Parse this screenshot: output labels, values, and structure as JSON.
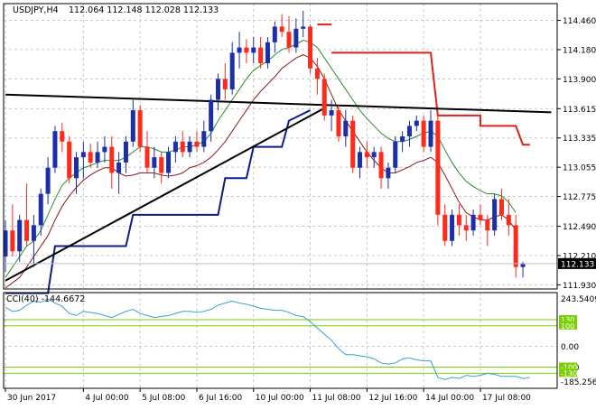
{
  "chart_data": {
    "type": "candlestick",
    "symbol_header": "USDJPY,H4",
    "ohlc_header": "112.064 112.148 112.028 112.133",
    "price_axis": {
      "range": [
        111.89,
        114.62
      ],
      "ticks": [
        "114.460",
        "114.180",
        "113.900",
        "113.615",
        "113.335",
        "113.055",
        "112.775",
        "112.490",
        "112.210",
        "111.930"
      ],
      "tick_values": [
        114.46,
        114.18,
        113.9,
        113.615,
        113.335,
        113.055,
        112.775,
        112.49,
        112.21,
        111.93
      ],
      "current_price_label": "112.133",
      "current_price": 112.133
    },
    "time_axis": {
      "bar_count": 77,
      "labels": [
        {
          "text": "30 Jun 2017",
          "bar": 0
        },
        {
          "text": "4 Jul 00:00",
          "bar": 11
        },
        {
          "text": "5 Jul 08:00",
          "bar": 19
        },
        {
          "text": "6 Jul 16:00",
          "bar": 27
        },
        {
          "text": "10 Jul 00:00",
          "bar": 35
        },
        {
          "text": "11 Jul 08:00",
          "bar": 43
        },
        {
          "text": "12 Jul 16:00",
          "bar": 51
        },
        {
          "text": "14 Jul 00:00",
          "bar": 59
        },
        {
          "text": "17 Jul 08:00",
          "bar": 67
        }
      ]
    },
    "colors": {
      "bull": "#1a2fa8",
      "bear": "#ff2a1a",
      "ma_fast": "#2e8b2e",
      "ma_slow": "#8b1a1a",
      "trend": "#000000",
      "stop_low": "#0b1e88",
      "stop_high": "#e0201a",
      "cci_line": "#3aa0c8",
      "cci_levels": "#7ad000",
      "grid": "#c8c8c8",
      "price_box": "#c0c0c0"
    },
    "candles": [
      [
        112.2,
        112.55,
        112.05,
        112.45
      ],
      [
        112.45,
        112.7,
        112.2,
        112.25
      ],
      [
        112.25,
        112.6,
        112.15,
        112.55
      ],
      [
        112.55,
        112.9,
        112.3,
        112.35
      ],
      [
        112.35,
        112.6,
        112.1,
        112.5
      ],
      [
        112.5,
        112.85,
        112.4,
        112.8
      ],
      [
        112.8,
        113.15,
        112.7,
        113.05
      ],
      [
        113.05,
        113.45,
        113.0,
        113.4
      ],
      [
        113.4,
        113.48,
        113.2,
        113.3
      ],
      [
        113.3,
        113.35,
        112.9,
        112.95
      ],
      [
        112.95,
        113.2,
        112.8,
        113.15
      ],
      [
        113.15,
        113.3,
        112.95,
        113.2
      ],
      [
        113.2,
        113.28,
        113.05,
        113.1
      ],
      [
        113.1,
        113.3,
        113.05,
        113.2
      ],
      [
        113.2,
        113.35,
        113.1,
        113.25
      ],
      [
        113.25,
        113.35,
        112.85,
        113.0
      ],
      [
        113.0,
        113.2,
        112.8,
        113.1
      ],
      [
        113.1,
        113.35,
        113.0,
        113.3
      ],
      [
        113.3,
        113.7,
        113.25,
        113.6
      ],
      [
        113.6,
        113.65,
        113.2,
        113.25
      ],
      [
        113.25,
        113.4,
        113.0,
        113.05
      ],
      [
        113.05,
        113.25,
        112.95,
        113.15
      ],
      [
        113.15,
        113.2,
        112.9,
        113.0
      ],
      [
        113.0,
        113.25,
        112.95,
        113.2
      ],
      [
        113.2,
        113.35,
        113.1,
        113.3
      ],
      [
        113.3,
        113.4,
        113.15,
        113.2
      ],
      [
        113.2,
        113.35,
        113.15,
        113.3
      ],
      [
        113.3,
        113.4,
        113.2,
        113.25
      ],
      [
        113.25,
        113.5,
        113.2,
        113.4
      ],
      [
        113.4,
        113.75,
        113.3,
        113.7
      ],
      [
        113.7,
        113.95,
        113.6,
        113.9
      ],
      [
        113.9,
        114.05,
        113.7,
        113.8
      ],
      [
        113.8,
        114.25,
        113.75,
        114.15
      ],
      [
        114.15,
        114.35,
        114.0,
        114.2
      ],
      [
        114.2,
        114.28,
        114.05,
        114.15
      ],
      [
        114.15,
        114.3,
        114.05,
        114.2
      ],
      [
        114.2,
        114.3,
        114.0,
        114.05
      ],
      [
        114.05,
        114.3,
        114.0,
        114.25
      ],
      [
        114.25,
        114.45,
        114.15,
        114.4
      ],
      [
        114.4,
        114.52,
        114.3,
        114.35
      ],
      [
        114.35,
        114.5,
        114.15,
        114.2
      ],
      [
        114.2,
        114.48,
        114.15,
        114.38
      ],
      [
        114.38,
        114.55,
        114.3,
        114.4
      ],
      [
        114.4,
        114.42,
        113.95,
        114.0
      ],
      [
        114.0,
        114.1,
        113.75,
        113.9
      ],
      [
        113.9,
        113.95,
        113.5,
        113.55
      ],
      [
        113.55,
        113.7,
        113.4,
        113.6
      ],
      [
        113.6,
        113.65,
        113.3,
        113.35
      ],
      [
        113.35,
        113.6,
        113.25,
        113.5
      ],
      [
        113.5,
        113.55,
        113.0,
        113.05
      ],
      [
        113.05,
        113.25,
        112.95,
        113.2
      ],
      [
        113.2,
        113.3,
        113.05,
        113.15
      ],
      [
        113.15,
        113.25,
        113.05,
        113.2
      ],
      [
        113.2,
        113.25,
        112.85,
        112.95
      ],
      [
        112.95,
        113.1,
        112.85,
        113.05
      ],
      [
        113.05,
        113.35,
        113.0,
        113.3
      ],
      [
        113.3,
        113.4,
        113.2,
        113.35
      ],
      [
        113.35,
        113.5,
        113.25,
        113.45
      ],
      [
        113.45,
        113.55,
        113.4,
        113.5
      ],
      [
        113.5,
        113.55,
        113.2,
        113.25
      ],
      [
        113.25,
        113.6,
        113.2,
        113.5
      ],
      [
        113.5,
        113.55,
        112.5,
        112.6
      ],
      [
        112.6,
        112.7,
        112.3,
        112.35
      ],
      [
        112.35,
        112.65,
        112.3,
        112.6
      ],
      [
        112.6,
        112.7,
        112.4,
        112.5
      ],
      [
        112.5,
        112.6,
        112.35,
        112.45
      ],
      [
        112.45,
        112.65,
        112.4,
        112.6
      ],
      [
        112.6,
        112.7,
        112.5,
        112.55
      ],
      [
        112.55,
        112.6,
        112.3,
        112.45
      ],
      [
        112.45,
        112.8,
        112.4,
        112.75
      ],
      [
        112.75,
        112.85,
        112.55,
        112.6
      ],
      [
        112.6,
        112.75,
        112.4,
        112.5
      ],
      [
        112.5,
        112.6,
        112.0,
        112.1
      ],
      [
        112.1,
        112.15,
        112.0,
        112.13
      ]
    ],
    "ma_fast": [
      112.0,
      112.1,
      112.2,
      112.3,
      112.35,
      112.45,
      112.6,
      112.75,
      112.88,
      112.95,
      113.0,
      113.05,
      113.07,
      113.1,
      113.12,
      113.12,
      113.12,
      113.15,
      113.2,
      113.25,
      113.25,
      113.23,
      113.2,
      113.2,
      113.22,
      113.25,
      113.25,
      113.27,
      113.3,
      113.38,
      113.5,
      113.6,
      113.7,
      113.8,
      113.9,
      113.98,
      114.03,
      114.07,
      114.13,
      114.18,
      114.2,
      114.23,
      114.27,
      114.25,
      114.2,
      114.1,
      114.0,
      113.9,
      113.8,
      113.7,
      113.6,
      113.52,
      113.45,
      113.38,
      113.33,
      113.3,
      113.3,
      113.32,
      113.35,
      113.38,
      113.4,
      113.35,
      113.22,
      113.1,
      113.0,
      112.92,
      112.87,
      112.83,
      112.8,
      112.8,
      112.78,
      112.72,
      112.62
    ],
    "ma_slow": [
      111.9,
      111.95,
      112.0,
      112.1,
      112.2,
      112.3,
      112.4,
      112.55,
      112.68,
      112.78,
      112.86,
      112.93,
      112.98,
      113.02,
      113.05,
      113.05,
      113.0,
      112.97,
      112.98,
      113.0,
      113.0,
      113.0,
      112.98,
      112.97,
      112.98,
      113.0,
      113.05,
      113.07,
      113.1,
      113.15,
      113.22,
      113.3,
      113.4,
      113.5,
      113.6,
      113.7,
      113.78,
      113.85,
      113.92,
      114.0,
      114.05,
      114.1,
      114.13,
      114.1,
      114.02,
      113.9,
      113.75,
      113.6,
      113.5,
      113.4,
      113.3,
      113.2,
      113.12,
      113.05,
      113.0,
      113.0,
      113.03,
      113.06,
      113.1,
      113.12,
      113.15,
      113.1,
      112.98,
      112.85,
      112.72,
      112.62,
      112.58,
      112.55,
      112.55,
      112.58,
      112.6,
      112.55,
      112.45
    ],
    "stop_low_line": [
      {
        "bar": 0,
        "price": 111.85
      },
      {
        "bar": 6,
        "price": 111.85
      },
      {
        "bar": 7,
        "price": 112.3
      },
      {
        "bar": 17,
        "price": 112.3
      },
      {
        "bar": 18,
        "price": 112.6
      },
      {
        "bar": 30,
        "price": 112.6
      },
      {
        "bar": 31,
        "price": 112.95
      },
      {
        "bar": 34,
        "price": 112.95
      },
      {
        "bar": 35,
        "price": 113.25
      },
      {
        "bar": 39,
        "price": 113.25
      },
      {
        "bar": 40,
        "price": 113.5
      },
      {
        "bar": 43,
        "price": 113.6
      }
    ],
    "stop_high_segments": [
      [
        {
          "bar": 44,
          "price": 114.42
        },
        {
          "bar": 46,
          "price": 114.42
        }
      ],
      [
        {
          "bar": 46,
          "price": 114.15
        },
        {
          "bar": 60,
          "price": 114.15
        },
        {
          "bar": 61,
          "price": 113.55
        },
        {
          "bar": 67,
          "price": 113.55
        },
        {
          "bar": 67,
          "price": 113.45
        },
        {
          "bar": 72,
          "price": 113.45
        },
        {
          "bar": 73,
          "price": 113.27
        },
        {
          "bar": 74,
          "price": 113.27
        }
      ]
    ],
    "trend_lines": [
      [
        {
          "bar": 0,
          "price": 111.97
        },
        {
          "bar": 45,
          "price": 113.62
        }
      ],
      [
        {
          "bar": 0,
          "price": 113.75
        },
        {
          "bar": 77,
          "price": 113.58
        }
      ]
    ],
    "cci": {
      "label": "CCI(40) -144.6672",
      "axis_labels": [
        "243.5409",
        "100",
        "0.00",
        "-100",
        "-185.2562"
      ],
      "level_tags": [
        "130",
        "100",
        "-100",
        "-130"
      ],
      "range": [
        -185.2562,
        243.5409
      ],
      "levels": [
        130,
        100,
        -100,
        -130
      ],
      "values": [
        190,
        170,
        175,
        200,
        220,
        215,
        230,
        210,
        195,
        160,
        150,
        170,
        165,
        160,
        150,
        140,
        155,
        170,
        180,
        160,
        150,
        140,
        145,
        150,
        160,
        170,
        170,
        165,
        170,
        180,
        200,
        210,
        220,
        210,
        205,
        195,
        185,
        180,
        175,
        175,
        165,
        150,
        145,
        120,
        90,
        60,
        30,
        -10,
        -40,
        -40,
        -45,
        -50,
        -60,
        -80,
        -85,
        -80,
        -60,
        -55,
        -65,
        -70,
        -70,
        -150,
        -160,
        -150,
        -155,
        -140,
        -145,
        -140,
        -130,
        -135,
        -145,
        -145,
        -145,
        -155,
        -150
      ]
    }
  }
}
